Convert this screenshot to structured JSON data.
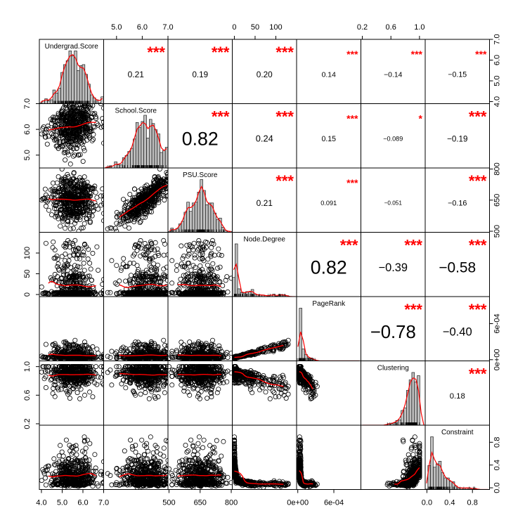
{
  "chart_data": {
    "type": "scatter",
    "title": "",
    "variables": [
      "Undergrad.Score",
      "School.Score",
      "PSU.Score",
      "Node.Degree",
      "PageRank",
      "Clustering",
      "Constraint"
    ],
    "ranges": [
      [
        3.9,
        7.0
      ],
      [
        4.5,
        7.0
      ],
      [
        495,
        805
      ],
      [
        -5,
        150
      ],
      [
        -2e-05,
        0.00105
      ],
      [
        0.18,
        1.08
      ],
      [
        -0.03,
        1.1
      ]
    ],
    "correlations": [
      {
        "i": 0,
        "j": 1,
        "r": "0.21",
        "stars": "***"
      },
      {
        "i": 0,
        "j": 2,
        "r": "0.19",
        "stars": "***"
      },
      {
        "i": 0,
        "j": 3,
        "r": "0.20",
        "stars": "***"
      },
      {
        "i": 0,
        "j": 4,
        "r": "0.14",
        "stars": "***"
      },
      {
        "i": 0,
        "j": 5,
        "r": "−0.14",
        "stars": "***"
      },
      {
        "i": 0,
        "j": 6,
        "r": "−0.15",
        "stars": "***"
      },
      {
        "i": 1,
        "j": 2,
        "r": "0.82",
        "stars": "***"
      },
      {
        "i": 1,
        "j": 3,
        "r": "0.24",
        "stars": "***"
      },
      {
        "i": 1,
        "j": 4,
        "r": "0.15",
        "stars": "***"
      },
      {
        "i": 1,
        "j": 5,
        "r": "−0.089",
        "stars": "*"
      },
      {
        "i": 1,
        "j": 6,
        "r": "−0.19",
        "stars": "***"
      },
      {
        "i": 2,
        "j": 3,
        "r": "0.21",
        "stars": "***"
      },
      {
        "i": 2,
        "j": 4,
        "r": "0.091",
        "stars": "***"
      },
      {
        "i": 2,
        "j": 5,
        "r": "−0.051",
        "stars": ""
      },
      {
        "i": 2,
        "j": 6,
        "r": "−0.16",
        "stars": "***"
      },
      {
        "i": 3,
        "j": 4,
        "r": "0.82",
        "stars": "***"
      },
      {
        "i": 3,
        "j": 5,
        "r": "−0.39",
        "stars": "***"
      },
      {
        "i": 3,
        "j": 6,
        "r": "−0.58",
        "stars": "***"
      },
      {
        "i": 4,
        "j": 5,
        "r": "−0.78",
        "stars": "***"
      },
      {
        "i": 4,
        "j": 6,
        "r": "−0.40",
        "stars": "***"
      },
      {
        "i": 5,
        "j": 6,
        "r": "0.18",
        "stars": "***"
      }
    ],
    "axes": {
      "top": [
        {
          "col": 1,
          "ticks": [
            {
              "v": 5.0,
              "label": "5.0"
            },
            {
              "v": 6.0,
              "label": "6.0"
            },
            {
              "v": 7.0,
              "label": "7.0"
            }
          ]
        },
        {
          "col": 3,
          "ticks": [
            {
              "v": 0,
              "label": "0"
            },
            {
              "v": 50,
              "label": "50"
            },
            {
              "v": 100,
              "label": "100"
            }
          ]
        },
        {
          "col": 5,
          "ticks": [
            {
              "v": 0.2,
              "label": "0.2"
            },
            {
              "v": 0.6,
              "label": "0.6"
            },
            {
              "v": 1.0,
              "label": "1.0"
            }
          ]
        }
      ],
      "bottom": [
        {
          "col": 0,
          "ticks": [
            {
              "v": 4.0,
              "label": "4.0"
            },
            {
              "v": 5.0,
              "label": "5.0"
            },
            {
              "v": 6.0,
              "label": "6.0"
            },
            {
              "v": 7.0,
              "label": "7.0"
            }
          ]
        },
        {
          "col": 2,
          "ticks": [
            {
              "v": 500,
              "label": "500"
            },
            {
              "v": 650,
              "label": "650"
            },
            {
              "v": 800,
              "label": "800"
            }
          ]
        },
        {
          "col": 4,
          "ticks": [
            {
              "v": 0,
              "label": "0e+00"
            },
            {
              "v": 0.0006,
              "label": "6e-04"
            }
          ]
        },
        {
          "col": 6,
          "ticks": [
            {
              "v": 0.0,
              "label": "0.0"
            },
            {
              "v": 0.4,
              "label": "0.4"
            },
            {
              "v": 0.8,
              "label": "0.8"
            }
          ]
        }
      ],
      "left": [
        {
          "row": 1,
          "ticks": [
            {
              "v": 5.0,
              "label": "5.0"
            },
            {
              "v": 6.0,
              "label": "6.0"
            },
            {
              "v": 7.0,
              "label": "7.0"
            }
          ]
        },
        {
          "row": 3,
          "ticks": [
            {
              "v": 0,
              "label": "0"
            },
            {
              "v": 50,
              "label": "50"
            },
            {
              "v": 100,
              "label": "100"
            }
          ]
        },
        {
          "row": 5,
          "ticks": [
            {
              "v": 0.2,
              "label": "0.2"
            },
            {
              "v": 0.6,
              "label": "0.6"
            },
            {
              "v": 1.0,
              "label": "1.0"
            }
          ]
        }
      ],
      "right": [
        {
          "row": 0,
          "ticks": [
            {
              "v": 4.0,
              "label": "4.0"
            },
            {
              "v": 5.0,
              "label": "5.0"
            },
            {
              "v": 6.0,
              "label": "6.0"
            },
            {
              "v": 7.0,
              "label": "7.0"
            }
          ]
        },
        {
          "row": 2,
          "ticks": [
            {
              "v": 500,
              "label": "500"
            },
            {
              "v": 650,
              "label": "650"
            },
            {
              "v": 800,
              "label": "800"
            }
          ]
        },
        {
          "row": 4,
          "ticks": [
            {
              "v": 0,
              "label": "0e+00"
            },
            {
              "v": 0.0006,
              "label": "6e-04"
            }
          ]
        },
        {
          "row": 6,
          "ticks": [
            {
              "v": 0.0,
              "label": "0.0"
            },
            {
              "v": 0.4,
              "label": "0.4"
            },
            {
              "v": 0.8,
              "label": "0.8"
            }
          ]
        }
      ]
    },
    "colors": {
      "smooth": "#ff0000",
      "stars": "#ff0000",
      "points": "#000000",
      "bars": "#bebebe"
    }
  }
}
